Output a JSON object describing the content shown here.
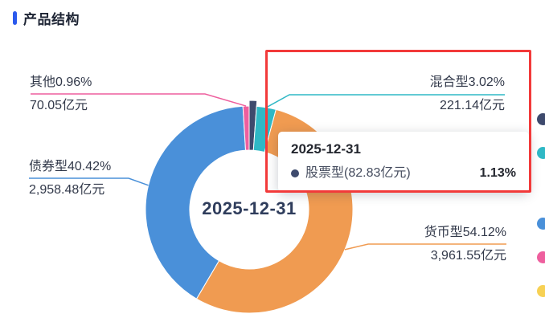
{
  "header": {
    "title": "产品结构",
    "accent_color": "#2b5aed"
  },
  "chart_data": {
    "type": "pie",
    "subtype": "donut",
    "title": "产品结构",
    "center_label": "2025-12-31",
    "unit": "亿元",
    "legend_position": "right",
    "series": [
      {
        "name": "股票型",
        "percent": 1.13,
        "amount": "82.83",
        "color": "#3e4a6d",
        "hovered": true
      },
      {
        "name": "混合型",
        "percent": 3.02,
        "amount": "221.14",
        "color": "#2fb8c5",
        "hovered": false
      },
      {
        "name": "货币型",
        "percent": 54.12,
        "amount": "3,961.55",
        "color": "#f09b51",
        "hovered": false
      },
      {
        "name": "债券型",
        "percent": 40.42,
        "amount": "2,958.48",
        "color": "#4a90d9",
        "hovered": false
      },
      {
        "name": "其他",
        "percent": 0.96,
        "amount": "70.05",
        "color": "#ee5f9e",
        "hovered": false
      }
    ]
  },
  "labels": {
    "qita": {
      "line1": "其他0.96%",
      "line2": "70.05亿元"
    },
    "zhaiquan": {
      "line1": "债券型40.42%",
      "line2": "2,958.48亿元"
    },
    "hunhe": {
      "line1": "混合型3.02%",
      "line2": "221.14亿元"
    },
    "huobi": {
      "line1": "货币型54.12%",
      "line2": "3,961.55亿元"
    }
  },
  "center_label": "2025-12-31",
  "tooltip": {
    "title": "2025-12-31",
    "series_name": "股票型(82.83亿元)",
    "value": "1.13%",
    "marker_color": "#3e4a6d"
  },
  "highlight": {
    "color": "#f23a3a"
  },
  "legend_dots": [
    {
      "name": "navy",
      "color": "#3e4a6d"
    },
    {
      "name": "teal",
      "color": "#2fb8c5"
    },
    {
      "name": "blue",
      "color": "#4a90d9"
    },
    {
      "name": "pink",
      "color": "#ee5f9e"
    },
    {
      "name": "yellow",
      "color": "#f7d154"
    }
  ]
}
